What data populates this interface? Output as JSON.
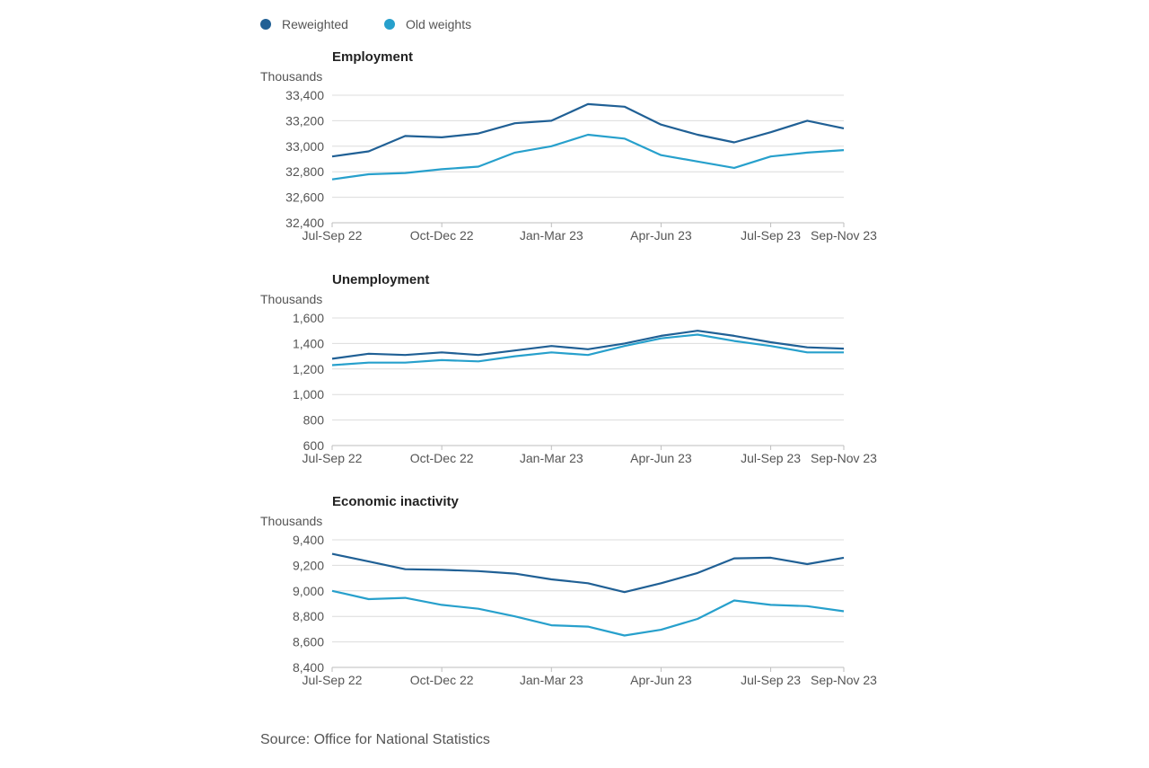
{
  "legend": [
    {
      "label": "Reweighted",
      "color": "#206095"
    },
    {
      "label": "Old weights",
      "color": "#27a0cc"
    }
  ],
  "source": "Source: Office for National Statistics",
  "chart_data": [
    {
      "type": "line",
      "title": "Employment",
      "unit_label": "Thousands",
      "x": [
        "Jul-Sep 22",
        "Aug-Oct 22",
        "Sep-Nov 22",
        "Oct-Dec 22",
        "Nov-Jan 23",
        "Dec-Feb 23",
        "Jan-Mar 23",
        "Feb-Apr 23",
        "Mar-May 23",
        "Apr-Jun 23",
        "May-Jul 23",
        "Jun-Aug 23",
        "Jul-Sep 23",
        "Aug-Oct 23",
        "Sep-Nov 23"
      ],
      "x_tick_labels": [
        "Jul-Sep 22",
        "Oct-Dec 22",
        "Jan-Mar 23",
        "Apr-Jun 23",
        "Jul-Sep 23",
        "Sep-Nov 23"
      ],
      "y_ticks": [
        "32,400",
        "32,600",
        "32,800",
        "33,000",
        "33,200",
        "33,400"
      ],
      "ylim": [
        32400,
        33400
      ],
      "series": [
        {
          "name": "Reweighted",
          "color": "#206095",
          "values": [
            32920,
            32960,
            33080,
            33070,
            33100,
            33180,
            33200,
            33330,
            33310,
            33170,
            33090,
            33030,
            33110,
            33200,
            33140
          ]
        },
        {
          "name": "Old weights",
          "color": "#27a0cc",
          "values": [
            32740,
            32780,
            32790,
            32820,
            32840,
            32950,
            33000,
            33090,
            33060,
            32930,
            32880,
            32830,
            32920,
            32950,
            32970
          ]
        }
      ]
    },
    {
      "type": "line",
      "title": "Unemployment",
      "unit_label": "Thousands",
      "x": [
        "Jul-Sep 22",
        "Aug-Oct 22",
        "Sep-Nov 22",
        "Oct-Dec 22",
        "Nov-Jan 23",
        "Dec-Feb 23",
        "Jan-Mar 23",
        "Feb-Apr 23",
        "Mar-May 23",
        "Apr-Jun 23",
        "May-Jul 23",
        "Jun-Aug 23",
        "Jul-Sep 23",
        "Aug-Oct 23",
        "Sep-Nov 23"
      ],
      "x_tick_labels": [
        "Jul-Sep 22",
        "Oct-Dec 22",
        "Jan-Mar 23",
        "Apr-Jun 23",
        "Jul-Sep 23",
        "Sep-Nov 23"
      ],
      "y_ticks": [
        "600",
        "800",
        "1,000",
        "1,200",
        "1,400",
        "1,600"
      ],
      "ylim": [
        600,
        1600
      ],
      "series": [
        {
          "name": "Reweighted",
          "color": "#206095",
          "values": [
            1280,
            1320,
            1310,
            1330,
            1310,
            1345,
            1380,
            1355,
            1400,
            1460,
            1500,
            1460,
            1410,
            1370,
            1360
          ]
        },
        {
          "name": "Old weights",
          "color": "#27a0cc",
          "values": [
            1230,
            1250,
            1250,
            1270,
            1260,
            1300,
            1330,
            1310,
            1380,
            1440,
            1470,
            1420,
            1380,
            1330,
            1330
          ]
        }
      ]
    },
    {
      "type": "line",
      "title": "Economic inactivity",
      "unit_label": "Thousands",
      "x": [
        "Jul-Sep 22",
        "Aug-Oct 22",
        "Sep-Nov 22",
        "Oct-Dec 22",
        "Nov-Jan 23",
        "Dec-Feb 23",
        "Jan-Mar 23",
        "Feb-Apr 23",
        "Mar-May 23",
        "Apr-Jun 23",
        "May-Jul 23",
        "Jun-Aug 23",
        "Jul-Sep 23",
        "Aug-Oct 23",
        "Sep-Nov 23"
      ],
      "x_tick_labels": [
        "Jul-Sep 22",
        "Oct-Dec 22",
        "Jan-Mar 23",
        "Apr-Jun 23",
        "Jul-Sep 23",
        "Sep-Nov 23"
      ],
      "y_ticks": [
        "8,400",
        "8,600",
        "8,800",
        "9,000",
        "9,200",
        "9,400"
      ],
      "ylim": [
        8400,
        9400
      ],
      "series": [
        {
          "name": "Reweighted",
          "color": "#206095",
          "values": [
            9290,
            9230,
            9170,
            9165,
            9155,
            9135,
            9090,
            9060,
            8990,
            9060,
            9140,
            9255,
            9260,
            9210,
            9260
          ]
        },
        {
          "name": "Old weights",
          "color": "#27a0cc",
          "values": [
            9000,
            8935,
            8945,
            8890,
            8860,
            8800,
            8730,
            8720,
            8650,
            8695,
            8780,
            8925,
            8890,
            8880,
            8840
          ]
        }
      ]
    }
  ]
}
